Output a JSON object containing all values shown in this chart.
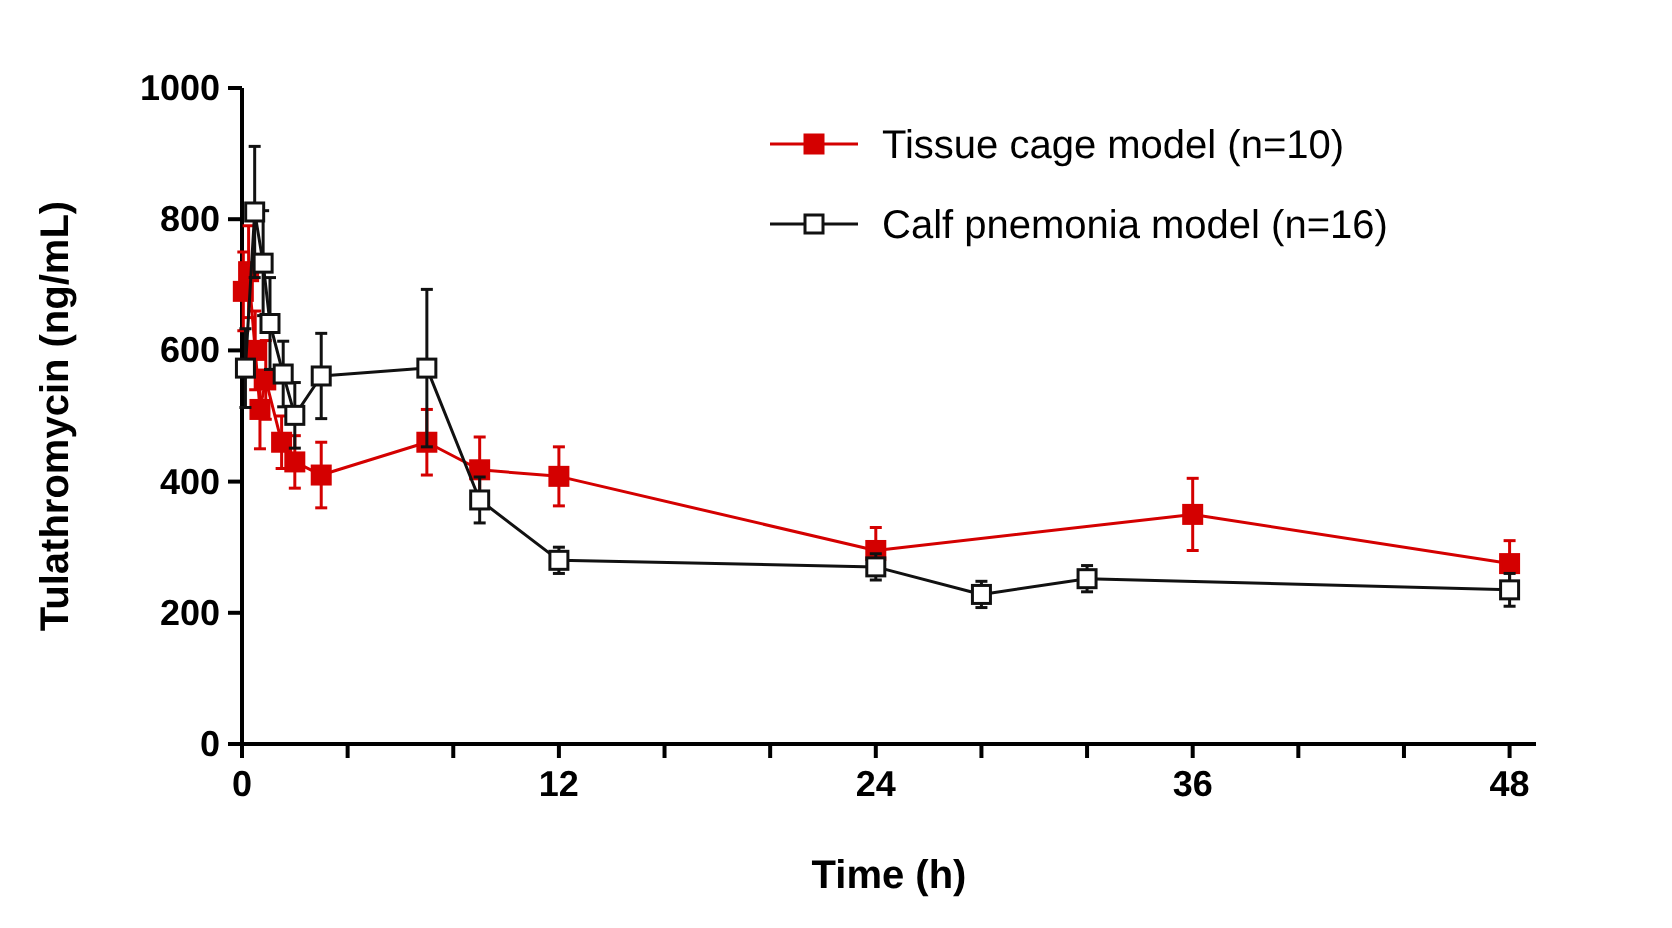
{
  "chart_data": {
    "type": "line",
    "xlabel": "Time (h)",
    "ylabel": "Tulathromycin (ng/mL)",
    "xlim": [
      0,
      49
    ],
    "xticks": [
      0,
      {
        "value": 4,
        "label": null
      },
      {
        "value": 8,
        "label": null
      },
      12,
      {
        "value": 16,
        "label": null
      },
      {
        "value": 20,
        "label": null
      },
      24,
      {
        "value": 28,
        "label": null
      },
      {
        "value": 32,
        "label": null
      },
      36,
      {
        "value": 40,
        "label": null
      },
      {
        "value": 44,
        "label": null
      },
      48
    ],
    "ylim": [
      0,
      1000
    ],
    "yticks": [
      0,
      200,
      400,
      600,
      800,
      1000
    ],
    "grid": false,
    "legend": "top right",
    "marker": "square",
    "line_style": "solid",
    "series": [
      {
        "name": "Tissue cage model (n=10)",
        "color": "#d40000",
        "x": [
          0.05,
          0.25,
          0.5,
          0.68,
          0.9,
          1.5,
          2,
          3,
          7,
          9,
          12,
          24,
          36,
          48
        ],
        "values": [
          690,
          720,
          600,
          510,
          555,
          460,
          430,
          410,
          460,
          418,
          408,
          295,
          350,
          275
        ],
        "errors": [
          60,
          70,
          60,
          60,
          60,
          40,
          40,
          50,
          50,
          50,
          45,
          35,
          55,
          35
        ]
      },
      {
        "name": "Calf pnemonia model (n=16)",
        "color": "#111111",
        "x": [
          0.13,
          0.48,
          0.8,
          1.06,
          1.56,
          2,
          3,
          7,
          9,
          12,
          24,
          28,
          32,
          48
        ],
        "values": [
          573,
          811,
          733,
          641,
          564,
          501,
          561,
          573,
          372,
          280,
          270,
          228,
          252,
          235
        ],
        "errors": [
          60,
          100,
          80,
          70,
          50,
          50,
          65,
          120,
          35,
          20,
          20,
          20,
          20,
          25
        ]
      }
    ]
  }
}
